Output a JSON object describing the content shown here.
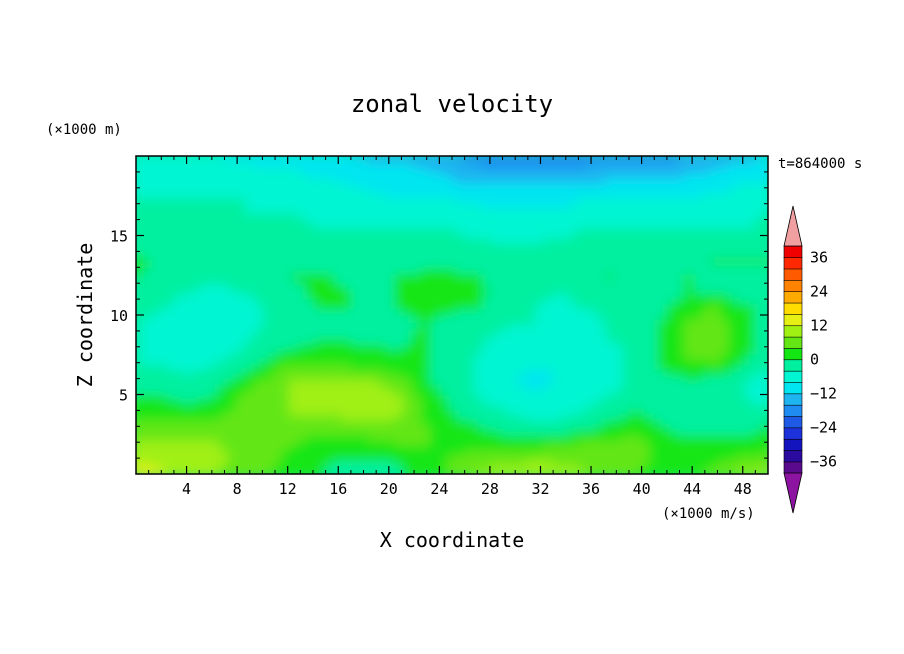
{
  "chart_data": {
    "type": "heatmap",
    "title": "zonal velocity",
    "xlabel": "X coordinate",
    "ylabel": "Z coordinate",
    "y_unit": "(×1000 m)",
    "x_unit": "(×1000 m/s)",
    "time_label": "t=864000 s",
    "xlim": [
      0,
      50
    ],
    "ylim": [
      0,
      20
    ],
    "x_ticks": [
      4,
      8,
      12,
      16,
      20,
      24,
      28,
      32,
      36,
      40,
      44,
      48
    ],
    "y_ticks": [
      5,
      10,
      15
    ],
    "colorbar": {
      "levels": [
        -40,
        -36,
        -32,
        -28,
        -24,
        -20,
        -16,
        -12,
        -8,
        -4,
        0,
        4,
        8,
        12,
        16,
        20,
        24,
        28,
        32,
        36,
        40
      ],
      "tick_labels": [
        36,
        24,
        12,
        0,
        -12,
        -24,
        -36
      ],
      "colors": [
        "#5a0a8c",
        "#2b0aa0",
        "#1414be",
        "#1e32dc",
        "#1e5ae6",
        "#1e8cf0",
        "#1eb4f0",
        "#00e6f0",
        "#00f5d2",
        "#00f0a0",
        "#14e614",
        "#64e614",
        "#a0f014",
        "#e6f014",
        "#ffdc00",
        "#ffaa00",
        "#ff8200",
        "#ff5a00",
        "#ff2800",
        "#f00000"
      ],
      "under_color": "#8c14a0",
      "over_color": "#f0a0a0"
    },
    "field_values": [
      [
        -6,
        -7,
        -7,
        -8,
        -9,
        -10,
        -10,
        -11,
        -12,
        -13,
        -13,
        -14,
        -16,
        -18,
        -20,
        -20,
        -20,
        -19,
        -18,
        -18,
        -18,
        -16,
        -14,
        -13,
        -12
      ],
      [
        -6,
        -6,
        -6,
        -7,
        -7,
        -8,
        -8,
        -9,
        -10,
        -11,
        -11,
        -12,
        -13,
        -15,
        -16,
        -16,
        -16,
        -15,
        -14,
        -14,
        -14,
        -13,
        -12,
        -11,
        -10
      ],
      [
        -5,
        -5,
        -5,
        -5,
        -6,
        -6,
        -7,
        -7,
        -8,
        -9,
        -9,
        -10,
        -11,
        -12,
        -12,
        -12,
        -12,
        -11,
        -11,
        -11,
        -11,
        -10,
        -9,
        -8,
        -8
      ],
      [
        -4,
        -4,
        -4,
        -4,
        -4,
        -5,
        -5,
        -6,
        -6,
        -7,
        -8,
        -8,
        -8,
        -9,
        -9,
        -9,
        -9,
        -8,
        -8,
        -8,
        -8,
        -8,
        -7,
        -6,
        -6
      ],
      [
        -3,
        -3,
        -3,
        -3,
        -4,
        -4,
        -4,
        -5,
        -5,
        -5,
        -6,
        -6,
        -6,
        -6,
        -7,
        -7,
        -7,
        -6,
        -6,
        -6,
        -6,
        -6,
        -5,
        -5,
        -4
      ],
      [
        -2,
        -3,
        -3,
        -3,
        -3,
        -3,
        -3,
        -4,
        -4,
        -4,
        -4,
        -4,
        -4,
        -5,
        -5,
        -5,
        -5,
        -4,
        -4,
        -4,
        -4,
        -4,
        -4,
        -4,
        -3
      ],
      [
        -1,
        -2,
        -2,
        -3,
        -3,
        -3,
        -3,
        -3,
        -3,
        -3,
        -3,
        -3,
        -3,
        -3,
        -4,
        -4,
        -3,
        -3,
        -3,
        -2,
        -2,
        -2,
        -1,
        -1,
        -1
      ],
      [
        1,
        -1,
        -2,
        -2,
        -3,
        -3,
        -3,
        -3,
        -3,
        -2,
        -2,
        -2,
        -2,
        -3,
        -3,
        -3,
        -3,
        -2,
        -1,
        -1,
        -1,
        -1,
        0,
        0,
        0
      ],
      [
        0,
        -2,
        -3,
        -3,
        -3,
        -3,
        0,
        1,
        -1,
        -3,
        0,
        1,
        1,
        0,
        -2,
        -3,
        -2,
        -1,
        0,
        -1,
        -3,
        0,
        -1,
        -1,
        -1
      ],
      [
        -1,
        -3,
        -4,
        -5,
        -4,
        -3,
        -1,
        1,
        0,
        -2,
        0,
        2,
        2,
        1,
        -1,
        -3,
        -4,
        -3,
        -1,
        -2,
        -3,
        0,
        -1,
        -2,
        -2
      ],
      [
        -3,
        -4,
        -5,
        -5,
        -5,
        -4,
        -2,
        0,
        0,
        -2,
        0,
        1,
        1,
        0,
        -2,
        -4,
        -5,
        -4,
        -3,
        -2,
        -1,
        3,
        4,
        1,
        -1
      ],
      [
        -4,
        -5,
        -6,
        -6,
        -5,
        -4,
        -3,
        -1,
        -1,
        -2,
        -1,
        0,
        -1,
        -2,
        -3,
        -4,
        -5,
        -5,
        -4,
        -3,
        0,
        4,
        5,
        2,
        -1
      ],
      [
        -4,
        -5,
        -6,
        -6,
        -5,
        -3,
        -2,
        -1,
        -1,
        -1,
        -1,
        1,
        -2,
        -3,
        -5,
        -6,
        -5,
        -5,
        -4,
        -3,
        1,
        5,
        6,
        2,
        -2
      ],
      [
        -4,
        -5,
        -5,
        -5,
        -4,
        -2,
        1,
        2,
        2,
        1,
        0,
        1,
        -2,
        -4,
        -6,
        -7,
        -7,
        -6,
        -5,
        -3,
        1,
        5,
        6,
        2,
        -3
      ],
      [
        -4,
        -4,
        -5,
        -4,
        -2,
        2,
        5,
        5,
        4,
        3,
        2,
        0,
        -2,
        -5,
        -7,
        -8,
        -8,
        -7,
        -5,
        -3,
        0,
        3,
        3,
        -1,
        -4
      ],
      [
        -2,
        -2,
        -3,
        -2,
        2,
        5,
        8,
        8,
        8,
        8,
        6,
        1,
        -2,
        -5,
        -7,
        -9,
        -8,
        -7,
        -5,
        -3,
        -2,
        -1,
        -2,
        -4,
        -5
      ],
      [
        0,
        0,
        -1,
        0,
        4,
        7,
        8,
        9,
        10,
        11,
        8,
        2,
        -1,
        -4,
        -6,
        -7,
        -7,
        -6,
        -4,
        -2,
        -2,
        -2,
        -3,
        -4,
        -5
      ],
      [
        3,
        3,
        2,
        3,
        5,
        7,
        8,
        8,
        9,
        10,
        8,
        3,
        0,
        -2,
        -4,
        -5,
        -5,
        -4,
        -2,
        0,
        -1,
        -2,
        -3,
        -3,
        -3
      ],
      [
        6,
        6,
        5,
        5,
        5,
        6,
        6,
        5,
        6,
        7,
        7,
        4,
        2,
        0,
        -1,
        -2,
        -2,
        -1,
        1,
        3,
        0,
        -1,
        -1,
        -1,
        0
      ],
      [
        8,
        8,
        9,
        8,
        7,
        5,
        4,
        3,
        2,
        3,
        4,
        4,
        3,
        3,
        2,
        2,
        3,
        4,
        5,
        5,
        2,
        1,
        1,
        1,
        2
      ],
      [
        11,
        10,
        10,
        9,
        7,
        5,
        3,
        1,
        0,
        0,
        1,
        3,
        4,
        5,
        6,
        7,
        7,
        7,
        6,
        5,
        3,
        2,
        3,
        4,
        5
      ],
      [
        15,
        12,
        10,
        8,
        6,
        4,
        2,
        0,
        -2,
        -3,
        -1,
        2,
        5,
        8,
        10,
        11,
        10,
        8,
        6,
        4,
        3,
        3,
        5,
        8,
        10
      ]
    ]
  }
}
